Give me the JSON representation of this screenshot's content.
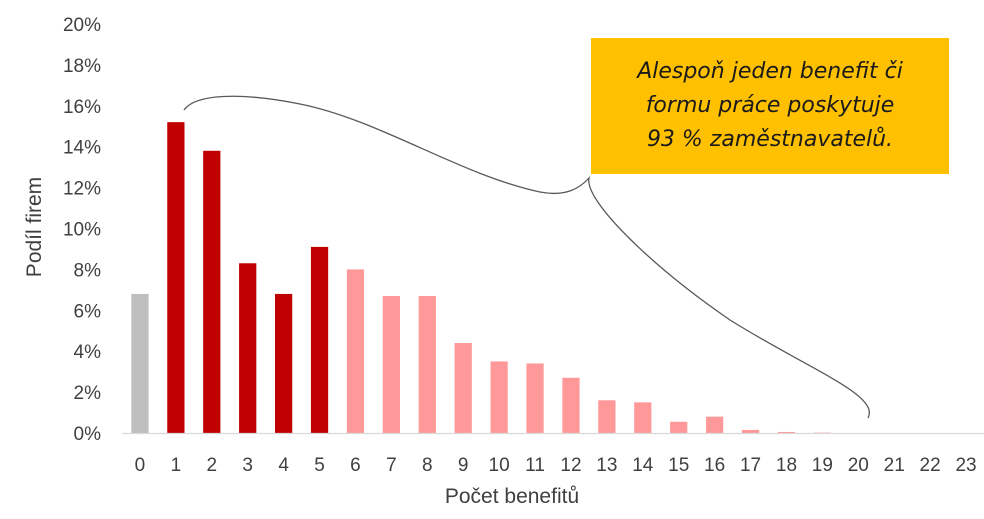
{
  "chart_data": {
    "type": "bar",
    "xlabel": "Počet benefitů",
    "ylabel": "Podíl firem",
    "ylim": [
      0,
      20
    ],
    "yticks": [
      "0%",
      "2%",
      "4%",
      "6%",
      "8%",
      "10%",
      "12%",
      "14%",
      "16%",
      "18%",
      "20%"
    ],
    "categories": [
      "0",
      "1",
      "2",
      "3",
      "4",
      "5",
      "6",
      "7",
      "8",
      "9",
      "10",
      "11",
      "12",
      "13",
      "14",
      "15",
      "16",
      "17",
      "18",
      "19",
      "20",
      "21",
      "22",
      "23"
    ],
    "values": [
      6.8,
      15.2,
      13.8,
      8.3,
      6.8,
      9.1,
      8.0,
      6.7,
      6.7,
      4.4,
      3.5,
      3.4,
      2.7,
      1.6,
      1.5,
      0.55,
      0.8,
      0.15,
      0.05,
      0.02,
      0,
      0,
      0,
      0
    ],
    "bar_colors": [
      "#bfbfbf",
      "#c00000",
      "#c00000",
      "#c00000",
      "#c00000",
      "#c00000",
      "#ff9999",
      "#ff9999",
      "#ff9999",
      "#ff9999",
      "#ff9999",
      "#ff9999",
      "#ff9999",
      "#ff9999",
      "#ff9999",
      "#ff9999",
      "#ff9999",
      "#ff9999",
      "#ff9999",
      "#ff9999",
      "#ff9999",
      "#ff9999",
      "#ff9999",
      "#ff9999"
    ],
    "grid": false,
    "annotation": {
      "text": "Alespoň jeden benefit či formu práce poskytuje 93 % zaměstnavatelů.",
      "lines": [
        "Alespoň jeden benefit či",
        "formu práce poskytuje",
        "93 % zaměstnavatelů."
      ],
      "background": "#ffc000"
    }
  },
  "colors": {
    "axis": "#d9d9d9",
    "text": "#404040",
    "brace": "#595959"
  }
}
